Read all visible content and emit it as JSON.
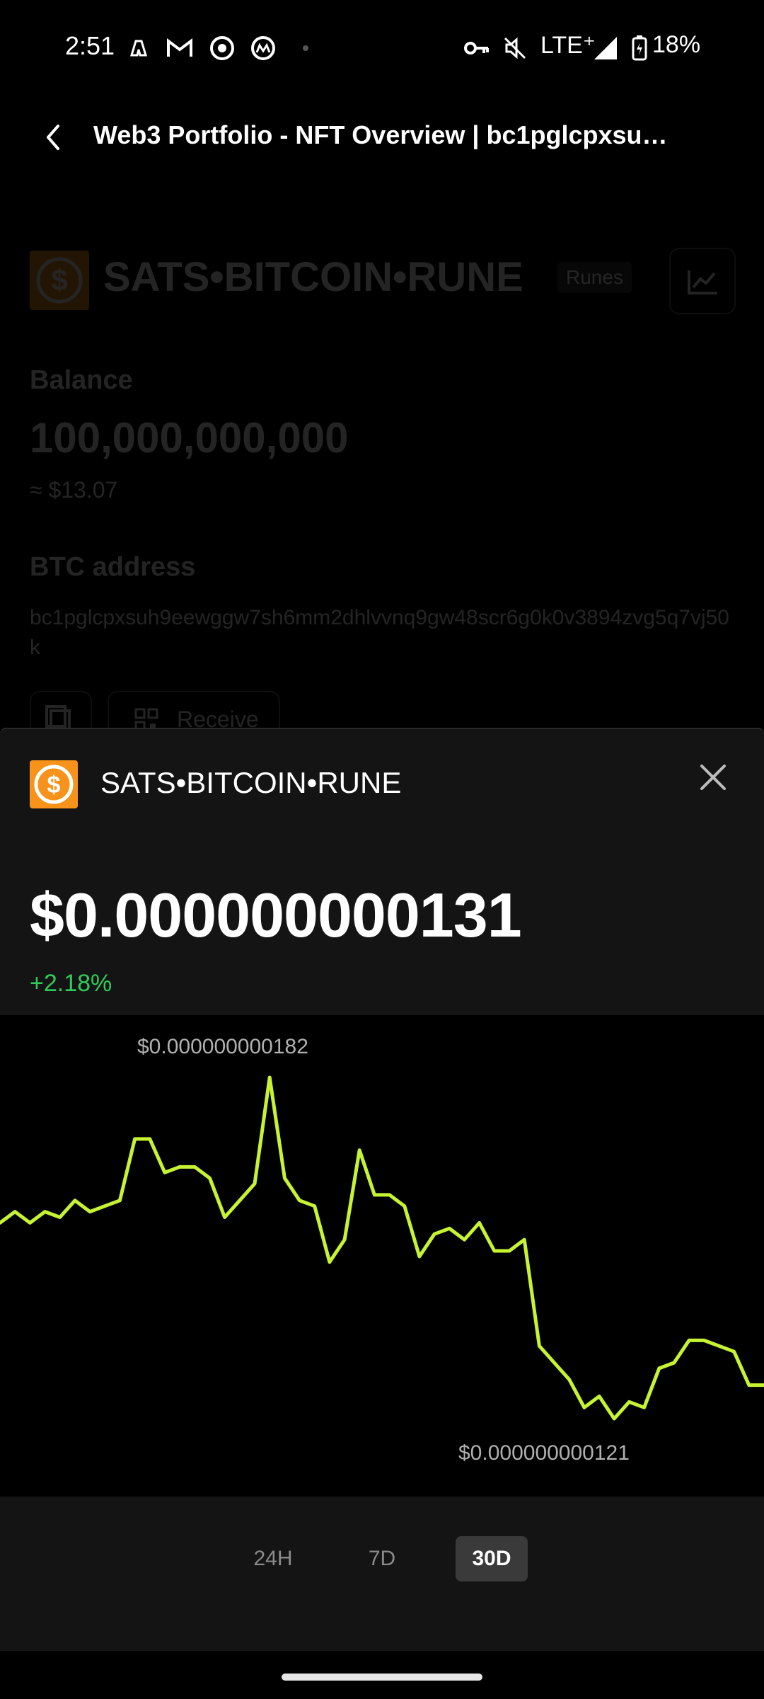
{
  "status_bar": {
    "time": "2:51",
    "network": "LTE⁺",
    "battery": "18%",
    "icons": [
      "copilot-icon",
      "gmail-icon",
      "chrome-icon",
      "coinmarketcap-icon",
      "dot-icon",
      "vpn-key-icon",
      "mute-icon",
      "signal-icon",
      "battery-icon"
    ]
  },
  "header": {
    "title": "Web3 Portfolio - NFT Overview | bc1pglcpxsu…"
  },
  "background": {
    "token_name": "SATS•BITCOIN•RUNE",
    "badge": "Runes",
    "balance_label": "Balance",
    "balance_value": "100,000,000,000",
    "balance_usd": "≈ $13.07",
    "address_label": "BTC address",
    "address_value": "bc1pglcpxsuh9eewggw7sh6mm2dhlvvnq9gw48scr6g0k0v3894zvg5q7vj50k",
    "receive_label": "Receive"
  },
  "sheet": {
    "token_name": "SATS•BITCOIN•RUNE",
    "price": "$0.000000000131",
    "change": "+2.18%",
    "change_color": "#2ecc5a",
    "logo_color": "#F7931A",
    "line_color": "#c6f432"
  },
  "chart_data": {
    "type": "line",
    "period": "30D",
    "max_label": "$0.000000000182",
    "min_label": "$0.000000000121",
    "ylim": [
      1.21e-10,
      1.82e-10
    ],
    "y": [
      1.56e-10,
      1.58e-10,
      1.56e-10,
      1.58e-10,
      1.57e-10,
      1.6e-10,
      1.58e-10,
      1.59e-10,
      1.6e-10,
      1.71e-10,
      1.71e-10,
      1.65e-10,
      1.66e-10,
      1.66e-10,
      1.64e-10,
      1.57e-10,
      1.6e-10,
      1.63e-10,
      1.82e-10,
      1.64e-10,
      1.6e-10,
      1.59e-10,
      1.49e-10,
      1.53e-10,
      1.69e-10,
      1.61e-10,
      1.61e-10,
      1.59e-10,
      1.5e-10,
      1.54e-10,
      1.55e-10,
      1.53e-10,
      1.56e-10,
      1.51e-10,
      1.51e-10,
      1.53e-10,
      1.34e-10,
      1.31e-10,
      1.28e-10,
      1.23e-10,
      1.25e-10,
      1.21e-10,
      1.24e-10,
      1.23e-10,
      1.3e-10,
      1.31e-10,
      1.35e-10,
      1.35e-10,
      1.34e-10,
      1.33e-10,
      1.27e-10,
      1.27e-10
    ]
  },
  "ranges": [
    {
      "label": "24H",
      "active": false
    },
    {
      "label": "7D",
      "active": false
    },
    {
      "label": "30D",
      "active": true
    }
  ]
}
